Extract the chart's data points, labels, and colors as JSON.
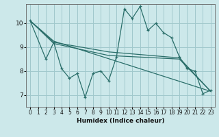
{
  "xlabel": "Humidex (Indice chaleur)",
  "xlim": [
    -0.5,
    23.5
  ],
  "ylim": [
    6.5,
    10.8
  ],
  "yticks": [
    7,
    8,
    9,
    10
  ],
  "xticks": [
    0,
    1,
    2,
    3,
    4,
    5,
    6,
    7,
    8,
    9,
    10,
    11,
    12,
    13,
    14,
    15,
    16,
    17,
    18,
    19,
    20,
    21,
    22,
    23
  ],
  "bg_color": "#cce8ea",
  "grid_color": "#a0c8cc",
  "line_color": "#2a6e6a",
  "series1_x": [
    0,
    2,
    3,
    4,
    5,
    6,
    7,
    8,
    9,
    10,
    11,
    12,
    13,
    14,
    15,
    16,
    17,
    18,
    19,
    20,
    21,
    22,
    23
  ],
  "series1_y": [
    10.1,
    8.5,
    9.2,
    8.1,
    7.7,
    7.9,
    6.9,
    7.9,
    8.0,
    7.6,
    8.6,
    10.6,
    10.2,
    10.7,
    9.7,
    10.0,
    9.6,
    9.4,
    8.6,
    8.1,
    8.0,
    7.05,
    7.2
  ],
  "series2_x": [
    0,
    3,
    23
  ],
  "series2_y": [
    10.1,
    9.25,
    7.15
  ],
  "series3_x": [
    0,
    3,
    10,
    19,
    23
  ],
  "series3_y": [
    10.1,
    9.2,
    8.8,
    8.55,
    7.15
  ],
  "series4_x": [
    0,
    3,
    10,
    19,
    23
  ],
  "series4_y": [
    10.1,
    9.15,
    8.65,
    8.5,
    7.15
  ]
}
